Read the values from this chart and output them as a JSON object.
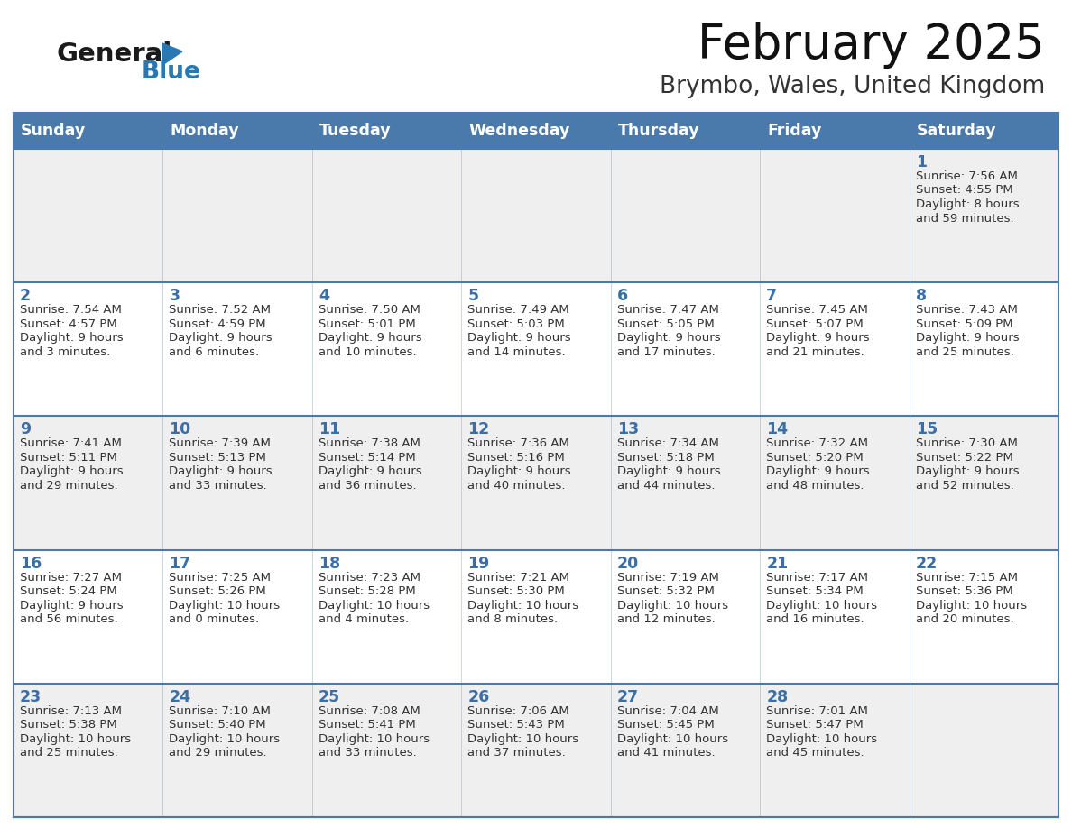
{
  "title": "February 2025",
  "subtitle": "Brymbo, Wales, United Kingdom",
  "header_bg": "#4a7aac",
  "header_text_color": "#FFFFFF",
  "days_of_week": [
    "Sunday",
    "Monday",
    "Tuesday",
    "Wednesday",
    "Thursday",
    "Friday",
    "Saturday"
  ],
  "cell_bg_odd": "#efefef",
  "cell_bg_even": "#FFFFFF",
  "day_text_color": "#3a6ea5",
  "info_text_color": "#333333",
  "border_color": "#4a7aac",
  "logo_general_color": "#1a1a1a",
  "logo_blue_color": "#2878B4",
  "calendar_data": [
    [
      null,
      null,
      null,
      null,
      null,
      null,
      {
        "day": "1",
        "sunrise": "Sunrise: 7:56 AM",
        "sunset": "Sunset: 4:55 PM",
        "daylight_l1": "Daylight: 8 hours",
        "daylight_l2": "and 59 minutes."
      }
    ],
    [
      {
        "day": "2",
        "sunrise": "Sunrise: 7:54 AM",
        "sunset": "Sunset: 4:57 PM",
        "daylight_l1": "Daylight: 9 hours",
        "daylight_l2": "and 3 minutes."
      },
      {
        "day": "3",
        "sunrise": "Sunrise: 7:52 AM",
        "sunset": "Sunset: 4:59 PM",
        "daylight_l1": "Daylight: 9 hours",
        "daylight_l2": "and 6 minutes."
      },
      {
        "day": "4",
        "sunrise": "Sunrise: 7:50 AM",
        "sunset": "Sunset: 5:01 PM",
        "daylight_l1": "Daylight: 9 hours",
        "daylight_l2": "and 10 minutes."
      },
      {
        "day": "5",
        "sunrise": "Sunrise: 7:49 AM",
        "sunset": "Sunset: 5:03 PM",
        "daylight_l1": "Daylight: 9 hours",
        "daylight_l2": "and 14 minutes."
      },
      {
        "day": "6",
        "sunrise": "Sunrise: 7:47 AM",
        "sunset": "Sunset: 5:05 PM",
        "daylight_l1": "Daylight: 9 hours",
        "daylight_l2": "and 17 minutes."
      },
      {
        "day": "7",
        "sunrise": "Sunrise: 7:45 AM",
        "sunset": "Sunset: 5:07 PM",
        "daylight_l1": "Daylight: 9 hours",
        "daylight_l2": "and 21 minutes."
      },
      {
        "day": "8",
        "sunrise": "Sunrise: 7:43 AM",
        "sunset": "Sunset: 5:09 PM",
        "daylight_l1": "Daylight: 9 hours",
        "daylight_l2": "and 25 minutes."
      }
    ],
    [
      {
        "day": "9",
        "sunrise": "Sunrise: 7:41 AM",
        "sunset": "Sunset: 5:11 PM",
        "daylight_l1": "Daylight: 9 hours",
        "daylight_l2": "and 29 minutes."
      },
      {
        "day": "10",
        "sunrise": "Sunrise: 7:39 AM",
        "sunset": "Sunset: 5:13 PM",
        "daylight_l1": "Daylight: 9 hours",
        "daylight_l2": "and 33 minutes."
      },
      {
        "day": "11",
        "sunrise": "Sunrise: 7:38 AM",
        "sunset": "Sunset: 5:14 PM",
        "daylight_l1": "Daylight: 9 hours",
        "daylight_l2": "and 36 minutes."
      },
      {
        "day": "12",
        "sunrise": "Sunrise: 7:36 AM",
        "sunset": "Sunset: 5:16 PM",
        "daylight_l1": "Daylight: 9 hours",
        "daylight_l2": "and 40 minutes."
      },
      {
        "day": "13",
        "sunrise": "Sunrise: 7:34 AM",
        "sunset": "Sunset: 5:18 PM",
        "daylight_l1": "Daylight: 9 hours",
        "daylight_l2": "and 44 minutes."
      },
      {
        "day": "14",
        "sunrise": "Sunrise: 7:32 AM",
        "sunset": "Sunset: 5:20 PM",
        "daylight_l1": "Daylight: 9 hours",
        "daylight_l2": "and 48 minutes."
      },
      {
        "day": "15",
        "sunrise": "Sunrise: 7:30 AM",
        "sunset": "Sunset: 5:22 PM",
        "daylight_l1": "Daylight: 9 hours",
        "daylight_l2": "and 52 minutes."
      }
    ],
    [
      {
        "day": "16",
        "sunrise": "Sunrise: 7:27 AM",
        "sunset": "Sunset: 5:24 PM",
        "daylight_l1": "Daylight: 9 hours",
        "daylight_l2": "and 56 minutes."
      },
      {
        "day": "17",
        "sunrise": "Sunrise: 7:25 AM",
        "sunset": "Sunset: 5:26 PM",
        "daylight_l1": "Daylight: 10 hours",
        "daylight_l2": "and 0 minutes."
      },
      {
        "day": "18",
        "sunrise": "Sunrise: 7:23 AM",
        "sunset": "Sunset: 5:28 PM",
        "daylight_l1": "Daylight: 10 hours",
        "daylight_l2": "and 4 minutes."
      },
      {
        "day": "19",
        "sunrise": "Sunrise: 7:21 AM",
        "sunset": "Sunset: 5:30 PM",
        "daylight_l1": "Daylight: 10 hours",
        "daylight_l2": "and 8 minutes."
      },
      {
        "day": "20",
        "sunrise": "Sunrise: 7:19 AM",
        "sunset": "Sunset: 5:32 PM",
        "daylight_l1": "Daylight: 10 hours",
        "daylight_l2": "and 12 minutes."
      },
      {
        "day": "21",
        "sunrise": "Sunrise: 7:17 AM",
        "sunset": "Sunset: 5:34 PM",
        "daylight_l1": "Daylight: 10 hours",
        "daylight_l2": "and 16 minutes."
      },
      {
        "day": "22",
        "sunrise": "Sunrise: 7:15 AM",
        "sunset": "Sunset: 5:36 PM",
        "daylight_l1": "Daylight: 10 hours",
        "daylight_l2": "and 20 minutes."
      }
    ],
    [
      {
        "day": "23",
        "sunrise": "Sunrise: 7:13 AM",
        "sunset": "Sunset: 5:38 PM",
        "daylight_l1": "Daylight: 10 hours",
        "daylight_l2": "and 25 minutes."
      },
      {
        "day": "24",
        "sunrise": "Sunrise: 7:10 AM",
        "sunset": "Sunset: 5:40 PM",
        "daylight_l1": "Daylight: 10 hours",
        "daylight_l2": "and 29 minutes."
      },
      {
        "day": "25",
        "sunrise": "Sunrise: 7:08 AM",
        "sunset": "Sunset: 5:41 PM",
        "daylight_l1": "Daylight: 10 hours",
        "daylight_l2": "and 33 minutes."
      },
      {
        "day": "26",
        "sunrise": "Sunrise: 7:06 AM",
        "sunset": "Sunset: 5:43 PM",
        "daylight_l1": "Daylight: 10 hours",
        "daylight_l2": "and 37 minutes."
      },
      {
        "day": "27",
        "sunrise": "Sunrise: 7:04 AM",
        "sunset": "Sunset: 5:45 PM",
        "daylight_l1": "Daylight: 10 hours",
        "daylight_l2": "and 41 minutes."
      },
      {
        "day": "28",
        "sunrise": "Sunrise: 7:01 AM",
        "sunset": "Sunset: 5:47 PM",
        "daylight_l1": "Daylight: 10 hours",
        "daylight_l2": "and 45 minutes."
      },
      null
    ]
  ],
  "figsize": [
    11.88,
    9.18
  ],
  "dpi": 100
}
